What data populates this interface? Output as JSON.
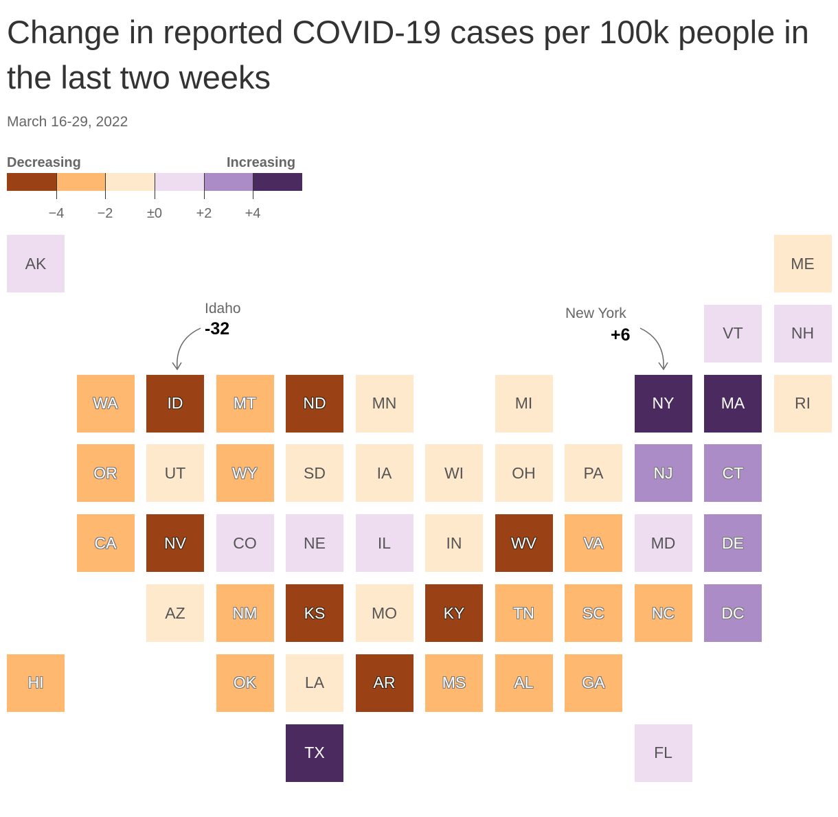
{
  "title": "Change in reported COVID-19 cases per 100k people in the last two weeks",
  "subtitle": "March 16-29, 2022",
  "legend": {
    "left_label": "Decreasing",
    "right_label": "Increasing",
    "colors": [
      "#9a4215",
      "#ffb870",
      "#ffe9cc",
      "#eedcf1",
      "#ab8cc7",
      "#4b2a60"
    ],
    "ticks": [
      "−4",
      "−2",
      "±0",
      "+2",
      "+4"
    ]
  },
  "bins": {
    "dec_high": "#9a4215",
    "dec_mid": "#ffb870",
    "dec_low": "#ffe9cc",
    "inc_low": "#eedcf1",
    "inc_mid": "#ab8cc7",
    "inc_high": "#4b2a60"
  },
  "annotations": [
    {
      "state": "ID",
      "name": "Idaho",
      "value": "-32"
    },
    {
      "state": "NY",
      "name": "New York",
      "value": "+6"
    }
  ],
  "states": [
    {
      "abbr": "AK",
      "row": 0,
      "col": 0,
      "bin": "inc_low"
    },
    {
      "abbr": "ME",
      "row": 0,
      "col": 11,
      "bin": "dec_low"
    },
    {
      "abbr": "VT",
      "row": 1,
      "col": 10,
      "bin": "inc_low"
    },
    {
      "abbr": "NH",
      "row": 1,
      "col": 11,
      "bin": "inc_low"
    },
    {
      "abbr": "WA",
      "row": 2,
      "col": 1,
      "bin": "dec_mid"
    },
    {
      "abbr": "ID",
      "row": 2,
      "col": 2,
      "bin": "dec_high"
    },
    {
      "abbr": "MT",
      "row": 2,
      "col": 3,
      "bin": "dec_mid"
    },
    {
      "abbr": "ND",
      "row": 2,
      "col": 4,
      "bin": "dec_high"
    },
    {
      "abbr": "MN",
      "row": 2,
      "col": 5,
      "bin": "dec_low"
    },
    {
      "abbr": "MI",
      "row": 2,
      "col": 7,
      "bin": "dec_low"
    },
    {
      "abbr": "NY",
      "row": 2,
      "col": 9,
      "bin": "inc_high"
    },
    {
      "abbr": "MA",
      "row": 2,
      "col": 10,
      "bin": "inc_high"
    },
    {
      "abbr": "RI",
      "row": 2,
      "col": 11,
      "bin": "dec_low"
    },
    {
      "abbr": "OR",
      "row": 3,
      "col": 1,
      "bin": "dec_mid"
    },
    {
      "abbr": "UT",
      "row": 3,
      "col": 2,
      "bin": "dec_low"
    },
    {
      "abbr": "WY",
      "row": 3,
      "col": 3,
      "bin": "dec_mid"
    },
    {
      "abbr": "SD",
      "row": 3,
      "col": 4,
      "bin": "dec_low"
    },
    {
      "abbr": "IA",
      "row": 3,
      "col": 5,
      "bin": "dec_low"
    },
    {
      "abbr": "WI",
      "row": 3,
      "col": 6,
      "bin": "dec_low"
    },
    {
      "abbr": "OH",
      "row": 3,
      "col": 7,
      "bin": "dec_low"
    },
    {
      "abbr": "PA",
      "row": 3,
      "col": 8,
      "bin": "dec_low"
    },
    {
      "abbr": "NJ",
      "row": 3,
      "col": 9,
      "bin": "inc_mid"
    },
    {
      "abbr": "CT",
      "row": 3,
      "col": 10,
      "bin": "inc_mid"
    },
    {
      "abbr": "CA",
      "row": 4,
      "col": 1,
      "bin": "dec_mid"
    },
    {
      "abbr": "NV",
      "row": 4,
      "col": 2,
      "bin": "dec_high"
    },
    {
      "abbr": "CO",
      "row": 4,
      "col": 3,
      "bin": "inc_low"
    },
    {
      "abbr": "NE",
      "row": 4,
      "col": 4,
      "bin": "inc_low"
    },
    {
      "abbr": "IL",
      "row": 4,
      "col": 5,
      "bin": "inc_low"
    },
    {
      "abbr": "IN",
      "row": 4,
      "col": 6,
      "bin": "dec_low"
    },
    {
      "abbr": "WV",
      "row": 4,
      "col": 7,
      "bin": "dec_high"
    },
    {
      "abbr": "VA",
      "row": 4,
      "col": 8,
      "bin": "dec_mid"
    },
    {
      "abbr": "MD",
      "row": 4,
      "col": 9,
      "bin": "inc_low"
    },
    {
      "abbr": "DE",
      "row": 4,
      "col": 10,
      "bin": "inc_mid"
    },
    {
      "abbr": "AZ",
      "row": 5,
      "col": 2,
      "bin": "dec_low"
    },
    {
      "abbr": "NM",
      "row": 5,
      "col": 3,
      "bin": "dec_mid"
    },
    {
      "abbr": "KS",
      "row": 5,
      "col": 4,
      "bin": "dec_high"
    },
    {
      "abbr": "MO",
      "row": 5,
      "col": 5,
      "bin": "dec_low"
    },
    {
      "abbr": "KY",
      "row": 5,
      "col": 6,
      "bin": "dec_high"
    },
    {
      "abbr": "TN",
      "row": 5,
      "col": 7,
      "bin": "dec_mid"
    },
    {
      "abbr": "SC",
      "row": 5,
      "col": 8,
      "bin": "dec_mid"
    },
    {
      "abbr": "NC",
      "row": 5,
      "col": 9,
      "bin": "dec_mid"
    },
    {
      "abbr": "DC",
      "row": 5,
      "col": 10,
      "bin": "inc_mid"
    },
    {
      "abbr": "HI",
      "row": 6,
      "col": 0,
      "bin": "dec_mid"
    },
    {
      "abbr": "OK",
      "row": 6,
      "col": 3,
      "bin": "dec_mid"
    },
    {
      "abbr": "LA",
      "row": 6,
      "col": 4,
      "bin": "dec_low"
    },
    {
      "abbr": "AR",
      "row": 6,
      "col": 5,
      "bin": "dec_high"
    },
    {
      "abbr": "MS",
      "row": 6,
      "col": 6,
      "bin": "dec_mid"
    },
    {
      "abbr": "AL",
      "row": 6,
      "col": 7,
      "bin": "dec_mid"
    },
    {
      "abbr": "GA",
      "row": 6,
      "col": 8,
      "bin": "dec_mid"
    },
    {
      "abbr": "TX",
      "row": 7,
      "col": 4,
      "bin": "inc_high"
    },
    {
      "abbr": "FL",
      "row": 7,
      "col": 9,
      "bin": "inc_low"
    }
  ]
}
